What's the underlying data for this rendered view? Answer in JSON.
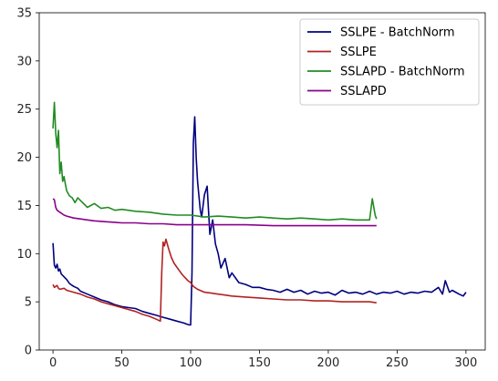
{
  "chart_data": {
    "type": "line",
    "title": "",
    "xlabel": "",
    "ylabel": "",
    "xlim": [
      -10,
      314
    ],
    "ylim": [
      0,
      35
    ],
    "xticks": [
      "0",
      "50",
      "100",
      "150",
      "200",
      "250",
      "300"
    ],
    "yticks": [
      "0",
      "5",
      "10",
      "15",
      "20",
      "25",
      "30",
      "35"
    ],
    "grid": false,
    "legend_position": "top-right",
    "series": [
      {
        "name": "SSLPE - BatchNorm",
        "color": "#00007f",
        "x": [
          0,
          1,
          2,
          3,
          4,
          5,
          6,
          8,
          10,
          12,
          15,
          18,
          20,
          25,
          30,
          35,
          40,
          45,
          50,
          55,
          60,
          65,
          70,
          75,
          80,
          85,
          90,
          95,
          97,
          99,
          100,
          101,
          102,
          103,
          104,
          105,
          106,
          107,
          108,
          110,
          112,
          114,
          116,
          118,
          120,
          122,
          125,
          128,
          130,
          135,
          140,
          145,
          150,
          155,
          160,
          165,
          170,
          175,
          180,
          185,
          190,
          195,
          200,
          205,
          210,
          215,
          220,
          225,
          230,
          235,
          240,
          245,
          250,
          255,
          260,
          265,
          270,
          275,
          280,
          283,
          285,
          288,
          290,
          295,
          298,
          300
        ],
        "values": [
          11.1,
          8.8,
          8.5,
          8.9,
          8.2,
          8.4,
          7.9,
          7.6,
          7.3,
          6.9,
          6.6,
          6.4,
          6.1,
          5.8,
          5.5,
          5.2,
          5.0,
          4.7,
          4.5,
          4.4,
          4.3,
          4.0,
          3.8,
          3.6,
          3.4,
          3.2,
          3.0,
          2.8,
          2.7,
          2.6,
          2.6,
          8.0,
          21.5,
          24.2,
          20.0,
          17.5,
          16.0,
          14.5,
          13.8,
          16.1,
          17.0,
          12.0,
          13.5,
          11.0,
          10.0,
          8.5,
          9.5,
          7.5,
          8.0,
          7.0,
          6.8,
          6.5,
          6.5,
          6.3,
          6.2,
          6.0,
          6.3,
          6.0,
          6.2,
          5.8,
          6.1,
          5.9,
          6.0,
          5.7,
          6.2,
          5.9,
          6.0,
          5.8,
          6.1,
          5.8,
          6.0,
          5.9,
          6.1,
          5.8,
          6.0,
          5.9,
          6.1,
          6.0,
          6.5,
          5.8,
          7.2,
          6.0,
          6.2,
          5.8,
          5.6,
          6.0
        ]
      },
      {
        "name": "SSLPE",
        "color": "#b22222",
        "x": [
          0,
          1,
          2,
          3,
          4,
          5,
          8,
          10,
          15,
          20,
          25,
          30,
          35,
          40,
          45,
          50,
          55,
          60,
          65,
          70,
          75,
          78,
          79,
          80,
          81,
          82,
          84,
          86,
          88,
          90,
          92,
          94,
          96,
          98,
          100,
          102,
          105,
          110,
          115,
          120,
          125,
          130,
          140,
          150,
          160,
          170,
          180,
          190,
          200,
          210,
          220,
          230,
          235
        ],
        "values": [
          6.8,
          6.5,
          6.6,
          6.7,
          6.4,
          6.3,
          6.4,
          6.2,
          6.0,
          5.8,
          5.5,
          5.3,
          5.0,
          4.8,
          4.6,
          4.4,
          4.2,
          4.0,
          3.7,
          3.5,
          3.2,
          3.0,
          8.0,
          11.2,
          10.8,
          11.5,
          10.5,
          9.6,
          9.0,
          8.6,
          8.2,
          7.8,
          7.5,
          7.2,
          7.0,
          6.6,
          6.3,
          6.0,
          5.9,
          5.8,
          5.7,
          5.6,
          5.5,
          5.4,
          5.3,
          5.2,
          5.2,
          5.1,
          5.1,
          5.0,
          5.0,
          5.0,
          4.9
        ]
      },
      {
        "name": "SSLAPD - BatchNorm",
        "color": "#228b22",
        "x": [
          0,
          1,
          2,
          3,
          4,
          5,
          6,
          7,
          8,
          9,
          10,
          12,
          14,
          16,
          18,
          20,
          25,
          30,
          35,
          40,
          45,
          50,
          60,
          70,
          80,
          90,
          100,
          110,
          120,
          130,
          140,
          150,
          160,
          170,
          180,
          190,
          200,
          210,
          220,
          230,
          232,
          234,
          235
        ],
        "values": [
          23.0,
          25.7,
          22.5,
          21.0,
          22.8,
          18.3,
          19.5,
          17.5,
          18.0,
          17.2,
          16.5,
          16.0,
          15.8,
          15.3,
          15.8,
          15.5,
          14.8,
          15.2,
          14.7,
          14.8,
          14.5,
          14.6,
          14.4,
          14.3,
          14.1,
          14.0,
          14.0,
          13.8,
          13.9,
          13.8,
          13.7,
          13.8,
          13.7,
          13.6,
          13.7,
          13.6,
          13.5,
          13.6,
          13.5,
          13.5,
          15.7,
          14.0,
          13.6
        ]
      },
      {
        "name": "SSLAPD",
        "color": "#8b008b",
        "x": [
          0,
          1,
          2,
          3,
          5,
          8,
          10,
          15,
          20,
          25,
          30,
          40,
          50,
          60,
          70,
          80,
          90,
          100,
          120,
          140,
          160,
          180,
          200,
          220,
          235
        ],
        "values": [
          15.7,
          15.6,
          14.8,
          14.5,
          14.3,
          14.0,
          13.9,
          13.7,
          13.6,
          13.5,
          13.4,
          13.3,
          13.2,
          13.2,
          13.1,
          13.1,
          13.0,
          13.0,
          13.0,
          13.0,
          12.9,
          12.9,
          12.9,
          12.9,
          12.9
        ]
      }
    ]
  }
}
